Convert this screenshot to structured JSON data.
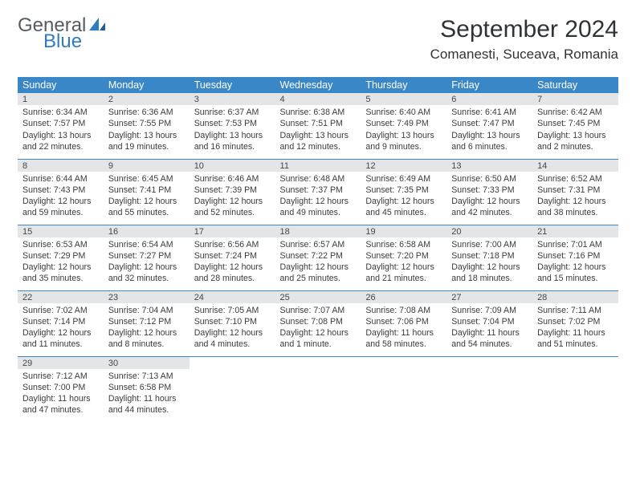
{
  "logo": {
    "general": "General",
    "blue": "Blue"
  },
  "title": "September 2024",
  "location": "Comanesti, Suceava, Romania",
  "colors": {
    "header_bg": "#3a87c8",
    "header_text": "#ffffff",
    "daynum_bg": "#e3e5e7",
    "border": "#3a87c8",
    "title_color": "#303335",
    "logo_gray": "#555b60",
    "logo_blue": "#2f7bbf",
    "page_bg": "#ffffff"
  },
  "typography": {
    "title_fontsize": 30,
    "location_fontsize": 17,
    "header_fontsize": 12.5,
    "cell_fontsize": 10.6,
    "daynum_fontsize": 11
  },
  "headers": [
    "Sunday",
    "Monday",
    "Tuesday",
    "Wednesday",
    "Thursday",
    "Friday",
    "Saturday"
  ],
  "weeks": [
    [
      {
        "n": "1",
        "sr": "Sunrise: 6:34 AM",
        "ss": "Sunset: 7:57 PM",
        "d1": "Daylight: 13 hours",
        "d2": "and 22 minutes."
      },
      {
        "n": "2",
        "sr": "Sunrise: 6:36 AM",
        "ss": "Sunset: 7:55 PM",
        "d1": "Daylight: 13 hours",
        "d2": "and 19 minutes."
      },
      {
        "n": "3",
        "sr": "Sunrise: 6:37 AM",
        "ss": "Sunset: 7:53 PM",
        "d1": "Daylight: 13 hours",
        "d2": "and 16 minutes."
      },
      {
        "n": "4",
        "sr": "Sunrise: 6:38 AM",
        "ss": "Sunset: 7:51 PM",
        "d1": "Daylight: 13 hours",
        "d2": "and 12 minutes."
      },
      {
        "n": "5",
        "sr": "Sunrise: 6:40 AM",
        "ss": "Sunset: 7:49 PM",
        "d1": "Daylight: 13 hours",
        "d2": "and 9 minutes."
      },
      {
        "n": "6",
        "sr": "Sunrise: 6:41 AM",
        "ss": "Sunset: 7:47 PM",
        "d1": "Daylight: 13 hours",
        "d2": "and 6 minutes."
      },
      {
        "n": "7",
        "sr": "Sunrise: 6:42 AM",
        "ss": "Sunset: 7:45 PM",
        "d1": "Daylight: 13 hours",
        "d2": "and 2 minutes."
      }
    ],
    [
      {
        "n": "8",
        "sr": "Sunrise: 6:44 AM",
        "ss": "Sunset: 7:43 PM",
        "d1": "Daylight: 12 hours",
        "d2": "and 59 minutes."
      },
      {
        "n": "9",
        "sr": "Sunrise: 6:45 AM",
        "ss": "Sunset: 7:41 PM",
        "d1": "Daylight: 12 hours",
        "d2": "and 55 minutes."
      },
      {
        "n": "10",
        "sr": "Sunrise: 6:46 AM",
        "ss": "Sunset: 7:39 PM",
        "d1": "Daylight: 12 hours",
        "d2": "and 52 minutes."
      },
      {
        "n": "11",
        "sr": "Sunrise: 6:48 AM",
        "ss": "Sunset: 7:37 PM",
        "d1": "Daylight: 12 hours",
        "d2": "and 49 minutes."
      },
      {
        "n": "12",
        "sr": "Sunrise: 6:49 AM",
        "ss": "Sunset: 7:35 PM",
        "d1": "Daylight: 12 hours",
        "d2": "and 45 minutes."
      },
      {
        "n": "13",
        "sr": "Sunrise: 6:50 AM",
        "ss": "Sunset: 7:33 PM",
        "d1": "Daylight: 12 hours",
        "d2": "and 42 minutes."
      },
      {
        "n": "14",
        "sr": "Sunrise: 6:52 AM",
        "ss": "Sunset: 7:31 PM",
        "d1": "Daylight: 12 hours",
        "d2": "and 38 minutes."
      }
    ],
    [
      {
        "n": "15",
        "sr": "Sunrise: 6:53 AM",
        "ss": "Sunset: 7:29 PM",
        "d1": "Daylight: 12 hours",
        "d2": "and 35 minutes."
      },
      {
        "n": "16",
        "sr": "Sunrise: 6:54 AM",
        "ss": "Sunset: 7:27 PM",
        "d1": "Daylight: 12 hours",
        "d2": "and 32 minutes."
      },
      {
        "n": "17",
        "sr": "Sunrise: 6:56 AM",
        "ss": "Sunset: 7:24 PM",
        "d1": "Daylight: 12 hours",
        "d2": "and 28 minutes."
      },
      {
        "n": "18",
        "sr": "Sunrise: 6:57 AM",
        "ss": "Sunset: 7:22 PM",
        "d1": "Daylight: 12 hours",
        "d2": "and 25 minutes."
      },
      {
        "n": "19",
        "sr": "Sunrise: 6:58 AM",
        "ss": "Sunset: 7:20 PM",
        "d1": "Daylight: 12 hours",
        "d2": "and 21 minutes."
      },
      {
        "n": "20",
        "sr": "Sunrise: 7:00 AM",
        "ss": "Sunset: 7:18 PM",
        "d1": "Daylight: 12 hours",
        "d2": "and 18 minutes."
      },
      {
        "n": "21",
        "sr": "Sunrise: 7:01 AM",
        "ss": "Sunset: 7:16 PM",
        "d1": "Daylight: 12 hours",
        "d2": "and 15 minutes."
      }
    ],
    [
      {
        "n": "22",
        "sr": "Sunrise: 7:02 AM",
        "ss": "Sunset: 7:14 PM",
        "d1": "Daylight: 12 hours",
        "d2": "and 11 minutes."
      },
      {
        "n": "23",
        "sr": "Sunrise: 7:04 AM",
        "ss": "Sunset: 7:12 PM",
        "d1": "Daylight: 12 hours",
        "d2": "and 8 minutes."
      },
      {
        "n": "24",
        "sr": "Sunrise: 7:05 AM",
        "ss": "Sunset: 7:10 PM",
        "d1": "Daylight: 12 hours",
        "d2": "and 4 minutes."
      },
      {
        "n": "25",
        "sr": "Sunrise: 7:07 AM",
        "ss": "Sunset: 7:08 PM",
        "d1": "Daylight: 12 hours",
        "d2": "and 1 minute."
      },
      {
        "n": "26",
        "sr": "Sunrise: 7:08 AM",
        "ss": "Sunset: 7:06 PM",
        "d1": "Daylight: 11 hours",
        "d2": "and 58 minutes."
      },
      {
        "n": "27",
        "sr": "Sunrise: 7:09 AM",
        "ss": "Sunset: 7:04 PM",
        "d1": "Daylight: 11 hours",
        "d2": "and 54 minutes."
      },
      {
        "n": "28",
        "sr": "Sunrise: 7:11 AM",
        "ss": "Sunset: 7:02 PM",
        "d1": "Daylight: 11 hours",
        "d2": "and 51 minutes."
      }
    ],
    [
      {
        "n": "29",
        "sr": "Sunrise: 7:12 AM",
        "ss": "Sunset: 7:00 PM",
        "d1": "Daylight: 11 hours",
        "d2": "and 47 minutes."
      },
      {
        "n": "30",
        "sr": "Sunrise: 7:13 AM",
        "ss": "Sunset: 6:58 PM",
        "d1": "Daylight: 11 hours",
        "d2": "and 44 minutes."
      },
      null,
      null,
      null,
      null,
      null
    ]
  ]
}
